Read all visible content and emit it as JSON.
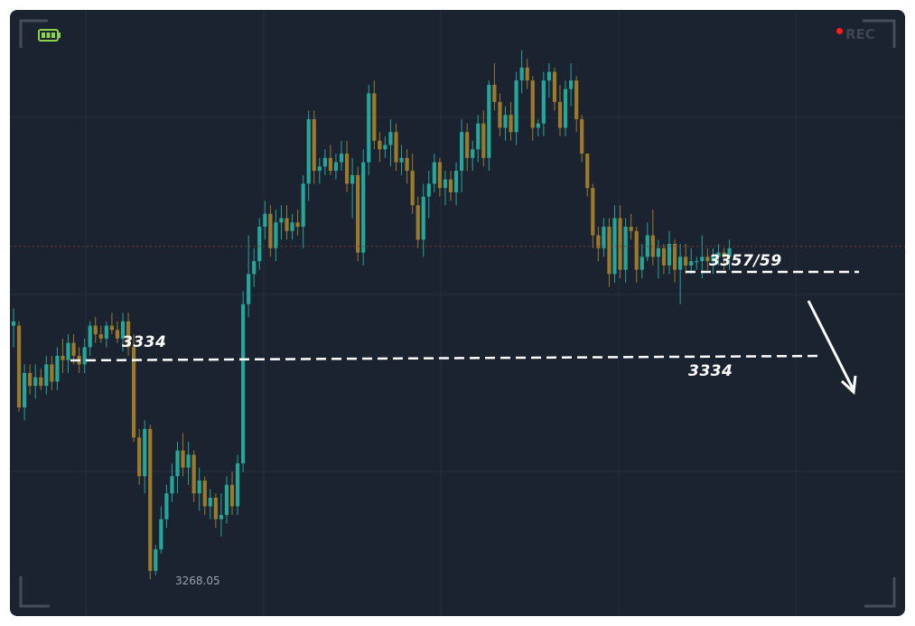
{
  "overlay": {
    "rec_label": "REC",
    "rec_color": "#ff1a1a",
    "battery_icon": "battery-full-icon",
    "battery_color": "#8bd449"
  },
  "colors": {
    "background": "#1b2230",
    "bull": "#26a69a",
    "bear": "#9c7a2b",
    "grid": "#243040",
    "annotation": "#ffffff"
  },
  "annotations": {
    "level_3334_left": "3334",
    "level_3357_59": "3357/59",
    "level_3334_right": "3334",
    "low_label": "3268.05"
  },
  "chart_data": {
    "type": "candlestick",
    "title": "",
    "xlabel": "",
    "ylabel": "",
    "ylim": [
      3266,
      3392
    ],
    "grid": true,
    "series": [
      {
        "candles": [
          [
            3327,
            3331,
            3322,
            3328
          ],
          [
            3327,
            3328,
            3307,
            3308
          ],
          [
            3308,
            3318,
            3305,
            3316
          ],
          [
            3316,
            3318,
            3311,
            3313
          ],
          [
            3313,
            3318,
            3310,
            3315
          ],
          [
            3315,
            3317,
            3312,
            3313
          ],
          [
            3313,
            3320,
            3311,
            3318
          ],
          [
            3318,
            3320,
            3312,
            3314
          ],
          [
            3314,
            3322,
            3312,
            3320
          ],
          [
            3320,
            3324,
            3316,
            3319
          ],
          [
            3319,
            3325,
            3316,
            3323
          ],
          [
            3323,
            3325,
            3318,
            3320
          ],
          [
            3320,
            3322,
            3316,
            3318
          ],
          [
            3318,
            3324,
            3316,
            3322
          ],
          [
            3322,
            3328,
            3320,
            3327
          ],
          [
            3327,
            3329,
            3323,
            3325
          ],
          [
            3325,
            3327,
            3323,
            3324
          ],
          [
            3324,
            3328,
            3322,
            3327
          ],
          [
            3327,
            3330,
            3325,
            3326
          ],
          [
            3326,
            3328,
            3323,
            3324
          ],
          [
            3324,
            3330,
            3321,
            3328
          ],
          [
            3328,
            3330,
            3320,
            3322
          ],
          [
            3322,
            3325,
            3300,
            3301
          ],
          [
            3301,
            3303,
            3290,
            3292
          ],
          [
            3292,
            3305,
            3288,
            3303
          ],
          [
            3303,
            3304,
            3268,
            3270
          ],
          [
            3270,
            3276,
            3269,
            3275
          ],
          [
            3275,
            3285,
            3274,
            3282
          ],
          [
            3282,
            3290,
            3280,
            3288
          ],
          [
            3288,
            3295,
            3286,
            3292
          ],
          [
            3292,
            3300,
            3288,
            3298
          ],
          [
            3298,
            3302,
            3292,
            3294
          ],
          [
            3294,
            3300,
            3290,
            3297
          ],
          [
            3297,
            3298,
            3286,
            3288
          ],
          [
            3288,
            3294,
            3284,
            3291
          ],
          [
            3291,
            3292,
            3283,
            3285
          ],
          [
            3285,
            3289,
            3282,
            3287
          ],
          [
            3287,
            3288,
            3280,
            3282
          ],
          [
            3282,
            3288,
            3278,
            3283
          ],
          [
            3283,
            3292,
            3281,
            3290
          ],
          [
            3290,
            3293,
            3283,
            3285
          ],
          [
            3285,
            3297,
            3283,
            3295
          ],
          [
            3295,
            3335,
            3293,
            3332
          ],
          [
            3332,
            3348,
            3329,
            3339
          ],
          [
            3339,
            3345,
            3336,
            3342
          ],
          [
            3342,
            3352,
            3340,
            3350
          ],
          [
            3350,
            3356,
            3347,
            3353
          ],
          [
            3353,
            3355,
            3343,
            3345
          ],
          [
            3345,
            3354,
            3342,
            3351
          ],
          [
            3351,
            3355,
            3347,
            3352
          ],
          [
            3352,
            3355,
            3347,
            3349
          ],
          [
            3349,
            3353,
            3347,
            3351
          ],
          [
            3351,
            3354,
            3348,
            3350
          ],
          [
            3350,
            3362,
            3345,
            3360
          ],
          [
            3360,
            3377,
            3356,
            3375
          ],
          [
            3375,
            3377,
            3360,
            3363
          ],
          [
            3363,
            3366,
            3360,
            3364
          ],
          [
            3364,
            3368,
            3362,
            3366
          ],
          [
            3366,
            3369,
            3362,
            3363
          ],
          [
            3363,
            3367,
            3361,
            3365
          ],
          [
            3365,
            3370,
            3363,
            3367
          ],
          [
            3367,
            3370,
            3358,
            3360
          ],
          [
            3360,
            3366,
            3352,
            3362
          ],
          [
            3362,
            3364,
            3342,
            3344
          ],
          [
            3344,
            3368,
            3341,
            3365
          ],
          [
            3365,
            3383,
            3362,
            3381
          ],
          [
            3381,
            3384,
            3368,
            3370
          ],
          [
            3370,
            3372,
            3365,
            3368
          ],
          [
            3368,
            3371,
            3366,
            3369
          ],
          [
            3369,
            3375,
            3364,
            3372
          ],
          [
            3372,
            3374,
            3363,
            3365
          ],
          [
            3365,
            3369,
            3362,
            3366
          ],
          [
            3366,
            3368,
            3360,
            3363
          ],
          [
            3363,
            3367,
            3353,
            3355
          ],
          [
            3355,
            3357,
            3345,
            3347
          ],
          [
            3347,
            3360,
            3343,
            3357
          ],
          [
            3357,
            3363,
            3352,
            3360
          ],
          [
            3360,
            3367,
            3358,
            3365
          ],
          [
            3365,
            3366,
            3357,
            3359
          ],
          [
            3359,
            3363,
            3355,
            3361
          ],
          [
            3361,
            3363,
            3356,
            3358
          ],
          [
            3358,
            3365,
            3355,
            3363
          ],
          [
            3363,
            3375,
            3358,
            3372
          ],
          [
            3372,
            3374,
            3363,
            3366
          ],
          [
            3366,
            3370,
            3363,
            3368
          ],
          [
            3368,
            3376,
            3365,
            3374
          ],
          [
            3374,
            3377,
            3364,
            3366
          ],
          [
            3366,
            3384,
            3363,
            3383
          ],
          [
            3383,
            3388,
            3377,
            3379
          ],
          [
            3379,
            3381,
            3371,
            3373
          ],
          [
            3373,
            3378,
            3370,
            3376
          ],
          [
            3376,
            3379,
            3370,
            3372
          ],
          [
            3372,
            3386,
            3369,
            3384
          ],
          [
            3384,
            3391,
            3381,
            3387
          ],
          [
            3387,
            3389,
            3382,
            3384
          ],
          [
            3384,
            3385,
            3370,
            3373
          ],
          [
            3373,
            3375,
            3371,
            3374
          ],
          [
            3374,
            3386,
            3371,
            3384
          ],
          [
            3384,
            3388,
            3380,
            3386
          ],
          [
            3386,
            3387,
            3377,
            3379
          ],
          [
            3379,
            3383,
            3371,
            3373
          ],
          [
            3373,
            3384,
            3371,
            3382
          ],
          [
            3382,
            3388,
            3378,
            3384
          ],
          [
            3384,
            3385,
            3372,
            3375
          ],
          [
            3375,
            3376,
            3365,
            3367
          ],
          [
            3367,
            3367,
            3357,
            3359
          ],
          [
            3359,
            3360,
            3345,
            3348
          ],
          [
            3348,
            3350,
            3342,
            3345
          ],
          [
            3345,
            3352,
            3343,
            3350
          ],
          [
            3350,
            3352,
            3336,
            3339
          ],
          [
            3339,
            3355,
            3337,
            3352
          ],
          [
            3352,
            3355,
            3338,
            3340
          ],
          [
            3340,
            3352,
            3337,
            3350
          ],
          [
            3350,
            3353,
            3347,
            3349
          ],
          [
            3349,
            3350,
            3337,
            3340
          ],
          [
            3340,
            3346,
            3338,
            3343
          ],
          [
            3343,
            3351,
            3342,
            3348
          ],
          [
            3348,
            3354,
            3341,
            3343
          ],
          [
            3343,
            3347,
            3338,
            3345
          ],
          [
            3345,
            3346,
            3339,
            3341
          ],
          [
            3341,
            3349,
            3339,
            3346
          ],
          [
            3346,
            3347,
            3337,
            3340
          ],
          [
            3340,
            3346,
            3332,
            3343
          ],
          [
            3343,
            3346,
            3339,
            3341
          ],
          [
            3341,
            3345,
            3339,
            3342
          ],
          [
            3342,
            3343,
            3340,
            3342
          ],
          [
            3342,
            3348,
            3338,
            3343
          ],
          [
            3343,
            3345,
            3340,
            3342
          ],
          [
            3342,
            3345,
            3339,
            3343
          ],
          [
            3343,
            3346,
            3341,
            3344
          ],
          [
            3344,
            3345,
            3340,
            3343
          ],
          [
            3343,
            3347,
            3340,
            3345
          ]
        ]
      }
    ]
  }
}
